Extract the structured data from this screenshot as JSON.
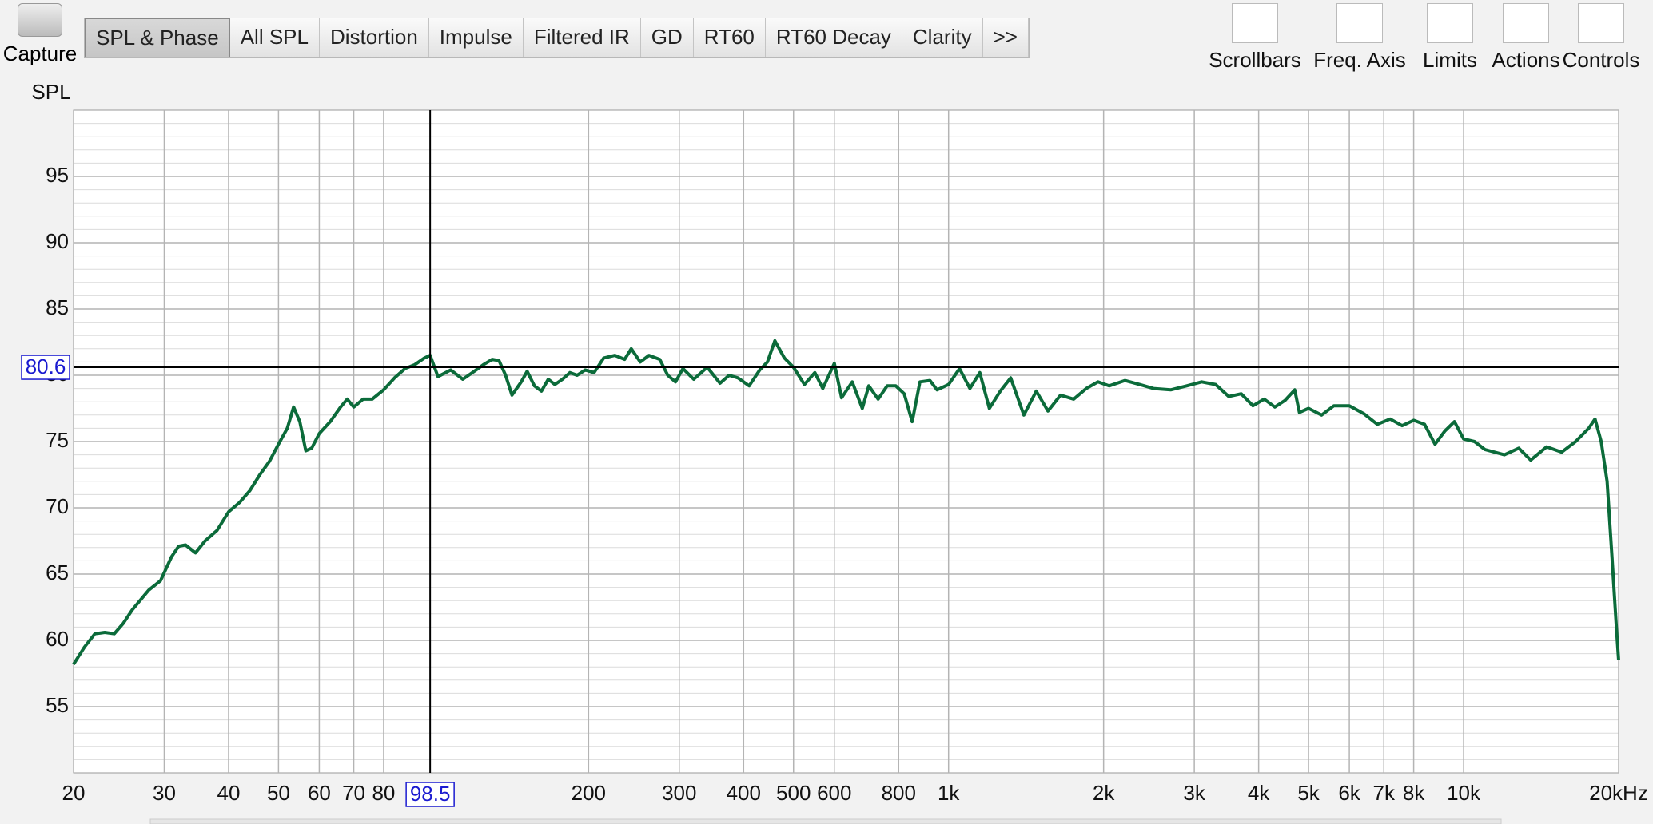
{
  "toolbar": {
    "capture": "Capture",
    "tabs": [
      "SPL & Phase",
      "All SPL",
      "Distortion",
      "Impulse",
      "Filtered IR",
      "GD",
      "RT60",
      "RT60 Decay",
      "Clarity",
      ">>"
    ],
    "tools": [
      "Scrollbars",
      "Freq. Axis",
      "Limits",
      "Actions",
      "Controls"
    ]
  },
  "chart_data": {
    "type": "line",
    "y_label": "SPL",
    "log_x": true,
    "grid": true,
    "xlim": [
      20,
      20000
    ],
    "ylim": [
      50,
      100
    ],
    "xticks": [
      20,
      30,
      40,
      50,
      60,
      70,
      80,
      200,
      300,
      400,
      500,
      600,
      800,
      {
        "value": 1000,
        "label": "1k"
      },
      {
        "value": 2000,
        "label": "2k"
      },
      {
        "value": 3000,
        "label": "3k"
      },
      {
        "value": 4000,
        "label": "4k"
      },
      {
        "value": 5000,
        "label": "5k"
      },
      {
        "value": 6000,
        "label": "6k"
      },
      {
        "value": 7000,
        "label": "7k"
      },
      {
        "value": 8000,
        "label": "8k"
      },
      {
        "value": 10000,
        "label": "10k"
      },
      {
        "value": 20000,
        "label": "20kHz"
      }
    ],
    "yticks": [
      55,
      60,
      65,
      70,
      75,
      80,
      85,
      90,
      95
    ],
    "cursor": {
      "x": 98.5,
      "y": 80.6
    },
    "x": [
      20,
      21,
      22,
      23,
      24,
      25,
      26,
      28,
      29.5,
      31,
      32,
      33,
      34.5,
      36,
      38,
      40,
      42,
      44,
      46,
      48,
      50,
      52,
      53.5,
      55,
      56.5,
      58,
      60,
      63,
      66,
      68,
      70,
      73,
      76,
      80,
      84,
      88,
      92,
      96,
      98.5,
      102,
      108,
      114,
      120,
      125,
      130,
      134,
      138,
      142,
      148,
      152,
      157,
      162,
      167,
      172,
      178,
      184,
      190,
      197,
      205,
      214,
      225,
      235,
      242,
      252,
      262,
      275,
      285,
      295,
      305,
      320,
      340,
      360,
      375,
      390,
      410,
      430,
      445,
      460,
      480,
      500,
      525,
      550,
      570,
      600,
      620,
      650,
      680,
      700,
      730,
      760,
      790,
      820,
      850,
      880,
      920,
      950,
      1000,
      1050,
      1100,
      1150,
      1200,
      1260,
      1320,
      1400,
      1480,
      1560,
      1650,
      1750,
      1850,
      1950,
      2050,
      2200,
      2350,
      2500,
      2700,
      2900,
      3100,
      3300,
      3500,
      3700,
      3900,
      4100,
      4300,
      4500,
      4700,
      4800,
      5000,
      5300,
      5600,
      6000,
      6400,
      6800,
      7200,
      7600,
      8000,
      8400,
      8800,
      9200,
      9600,
      10000,
      10500,
      11000,
      12000,
      12800,
      13500,
      14500,
      15500,
      16500,
      17500,
      18000,
      18500,
      19000,
      19400,
      19800,
      20000
    ],
    "series": [
      {
        "color": "#0b6b3a",
        "values": [
          58.2,
          59.5,
          60.5,
          60.6,
          60.5,
          61.3,
          62.3,
          63.8,
          64.5,
          66.3,
          67.1,
          67.2,
          66.6,
          67.5,
          68.3,
          69.7,
          70.4,
          71.3,
          72.5,
          73.5,
          74.8,
          76.0,
          77.6,
          76.5,
          74.3,
          74.5,
          75.6,
          76.5,
          77.6,
          78.2,
          77.6,
          78.2,
          78.2,
          78.9,
          79.8,
          80.5,
          80.8,
          81.3,
          81.5,
          79.9,
          80.4,
          79.7,
          80.3,
          80.8,
          81.2,
          81.1,
          80.0,
          78.5,
          79.5,
          80.3,
          79.2,
          78.8,
          79.7,
          79.3,
          79.7,
          80.2,
          80.0,
          80.4,
          80.2,
          81.3,
          81.5,
          81.2,
          82.0,
          81.0,
          81.5,
          81.2,
          80.0,
          79.5,
          80.5,
          79.7,
          80.6,
          79.4,
          80.0,
          79.8,
          79.2,
          80.4,
          81.0,
          82.6,
          81.3,
          80.6,
          79.3,
          80.2,
          79.0,
          80.9,
          78.3,
          79.5,
          77.5,
          79.2,
          78.2,
          79.2,
          79.2,
          78.6,
          76.5,
          79.5,
          79.6,
          78.9,
          79.3,
          80.5,
          79.0,
          80.2,
          77.5,
          78.8,
          79.8,
          77.0,
          78.8,
          77.3,
          78.5,
          78.2,
          79.0,
          79.5,
          79.2,
          79.6,
          79.3,
          79.0,
          78.9,
          79.2,
          79.5,
          79.3,
          78.4,
          78.6,
          77.7,
          78.2,
          77.6,
          78.1,
          78.9,
          77.2,
          77.5,
          77.0,
          77.7,
          77.7,
          77.1,
          76.3,
          76.7,
          76.2,
          76.6,
          76.3,
          74.8,
          75.8,
          76.5,
          75.2,
          75.0,
          74.4,
          74.0,
          74.5,
          73.6,
          74.6,
          74.2,
          75.0,
          76.0,
          76.7,
          75.0,
          72.0,
          66.5,
          61.0,
          58.5
        ]
      }
    ]
  }
}
